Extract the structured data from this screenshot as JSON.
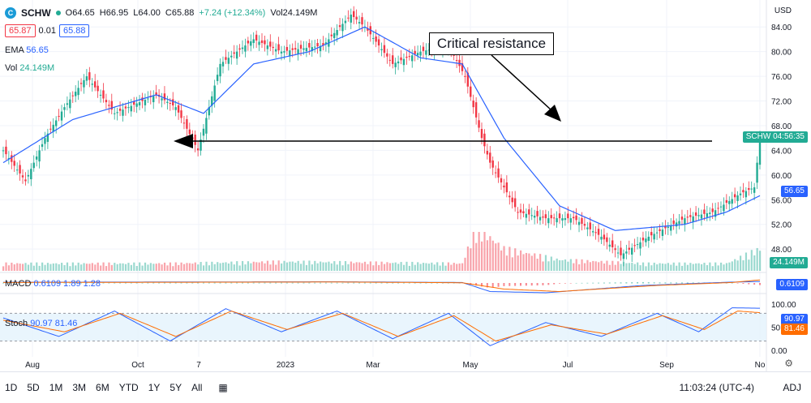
{
  "header": {
    "logo_letter": "C",
    "symbol": "SCHW",
    "open": "O64.65",
    "high": "H66.95",
    "low": "L64.00",
    "close": "C65.88",
    "change": "+7.24 (+12.34%)",
    "vol": "Vol24.149M"
  },
  "price_boxes": {
    "sell": "65.87",
    "spread": "0.01",
    "buy": "65.88"
  },
  "indicators": {
    "ema_label": "EMA",
    "ema_value": "56.65",
    "vol_label": "Vol",
    "vol_value": "24.149M",
    "macd_label": "MACD",
    "macd_values": "0.6109 1.89 1.28",
    "stoch_label": "Stoch",
    "stoch_values": "90.97 81.46"
  },
  "axis": {
    "currency": "USD",
    "price_ticks": [
      "84.00",
      "80.00",
      "76.00",
      "72.00",
      "68.00",
      "64.00",
      "60.00",
      "56.00",
      "52.00",
      "48.00"
    ],
    "stoch_ticks": [
      "100.00",
      "50.00",
      "0.00"
    ]
  },
  "tags": {
    "schw_label": "SCHW",
    "schw_time": "04:56:35",
    "ema": "56.65",
    "vol": "24.149M",
    "macd": "0.6109",
    "stoch_k": "90.97",
    "stoch_d": "81.46"
  },
  "colors": {
    "up": "#22ab94",
    "down": "#f23645",
    "ema": "#2962ff",
    "macd": "#2962ff",
    "signal": "#ff6d00",
    "stoch_band": "#e3f2fd"
  },
  "annotation": {
    "text": "Critical resistance"
  },
  "bottom_bar": {
    "ranges": [
      "1D",
      "5D",
      "1M",
      "3M",
      "6M",
      "YTD",
      "1Y",
      "5Y",
      "All"
    ],
    "calendar_icon": "calendar-icon",
    "clock": "11:03:24 (UTC-4)",
    "adj": "ADJ",
    "settings_icon": "gear-icon"
  },
  "chart_data": {
    "type": "candlestick",
    "title": "",
    "x_labels": [
      "Aug",
      "Oct",
      "7",
      "2023",
      "Mar",
      "May",
      "Jul",
      "Sep",
      "No"
    ],
    "ylim": [
      45,
      86
    ],
    "resistance_level": 65.5,
    "close_path": [
      [
        0,
        64
      ],
      [
        8,
        59
      ],
      [
        15,
        66
      ],
      [
        22,
        71
      ],
      [
        30,
        76
      ],
      [
        40,
        70
      ],
      [
        55,
        73
      ],
      [
        62,
        71
      ],
      [
        70,
        64
      ],
      [
        78,
        78
      ],
      [
        90,
        82
      ],
      [
        100,
        80
      ],
      [
        115,
        81
      ],
      [
        125,
        86
      ],
      [
        130,
        84
      ],
      [
        140,
        78
      ],
      [
        150,
        80
      ],
      [
        160,
        81
      ],
      [
        166,
        76
      ],
      [
        172,
        66
      ],
      [
        175,
        62
      ],
      [
        185,
        54
      ],
      [
        195,
        53
      ],
      [
        205,
        53
      ],
      [
        215,
        50
      ],
      [
        222,
        47
      ],
      [
        232,
        50
      ],
      [
        245,
        53
      ],
      [
        255,
        54
      ],
      [
        265,
        57
      ],
      [
        270,
        58
      ],
      [
        272,
        66
      ]
    ],
    "ema_path": [
      [
        0,
        62
      ],
      [
        25,
        69
      ],
      [
        55,
        73
      ],
      [
        72,
        70
      ],
      [
        90,
        78
      ],
      [
        110,
        80
      ],
      [
        130,
        84
      ],
      [
        150,
        79
      ],
      [
        165,
        78
      ],
      [
        180,
        66
      ],
      [
        200,
        55
      ],
      [
        220,
        51
      ],
      [
        245,
        52
      ],
      [
        260,
        54
      ],
      [
        272,
        56.65
      ]
    ],
    "volume_path": [
      [
        0,
        2
      ],
      [
        60,
        2
      ],
      [
        100,
        2.5
      ],
      [
        165,
        2
      ],
      [
        170,
        12
      ],
      [
        180,
        6
      ],
      [
        200,
        3
      ],
      [
        230,
        2
      ],
      [
        260,
        2
      ],
      [
        272,
        6
      ]
    ],
    "macd_path": [
      [
        0,
        0.3
      ],
      [
        60,
        0.4
      ],
      [
        120,
        0.5
      ],
      [
        165,
        0.2
      ],
      [
        175,
        -3.5
      ],
      [
        195,
        -4
      ],
      [
        230,
        -1
      ],
      [
        260,
        0.3
      ],
      [
        272,
        0.61
      ]
    ],
    "signal_path": [
      [
        0,
        0.2
      ],
      [
        60,
        0.3
      ],
      [
        120,
        0.4
      ],
      [
        165,
        0.1
      ],
      [
        180,
        -2.5
      ],
      [
        200,
        -3.5
      ],
      [
        235,
        -1
      ],
      [
        262,
        0.2
      ],
      [
        272,
        1.28
      ]
    ],
    "stoch_k_path": [
      [
        0,
        70
      ],
      [
        20,
        30
      ],
      [
        40,
        85
      ],
      [
        60,
        20
      ],
      [
        80,
        90
      ],
      [
        100,
        40
      ],
      [
        120,
        85
      ],
      [
        140,
        25
      ],
      [
        160,
        80
      ],
      [
        175,
        10
      ],
      [
        195,
        60
      ],
      [
        215,
        30
      ],
      [
        235,
        80
      ],
      [
        250,
        40
      ],
      [
        262,
        92
      ],
      [
        272,
        90.97
      ]
    ],
    "stoch_d_path": [
      [
        0,
        65
      ],
      [
        22,
        40
      ],
      [
        42,
        80
      ],
      [
        62,
        30
      ],
      [
        82,
        85
      ],
      [
        102,
        45
      ],
      [
        122,
        80
      ],
      [
        142,
        30
      ],
      [
        162,
        75
      ],
      [
        177,
        20
      ],
      [
        197,
        55
      ],
      [
        217,
        35
      ],
      [
        237,
        75
      ],
      [
        252,
        45
      ],
      [
        264,
        85
      ],
      [
        272,
        81.46
      ]
    ]
  }
}
